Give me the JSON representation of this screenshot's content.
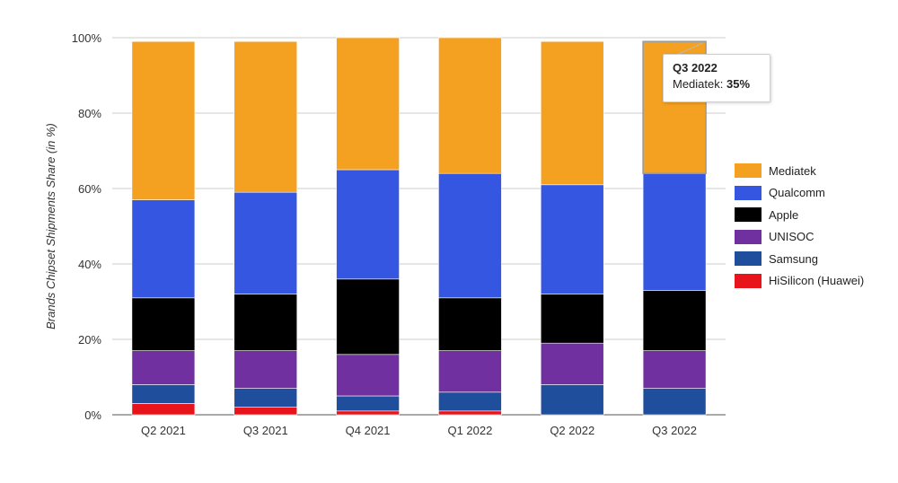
{
  "chart_data": {
    "type": "bar",
    "stacked": true,
    "title": "",
    "xlabel": "",
    "ylabel": "Brands Chipset Shipments Share (in %)",
    "ylim": [
      0,
      100
    ],
    "yticks": [
      "0%",
      "20%",
      "40%",
      "60%",
      "80%",
      "100%"
    ],
    "categories": [
      "Q2 2021",
      "Q3 2021",
      "Q4 2021",
      "Q1 2022",
      "Q2 2022",
      "Q3 2022"
    ],
    "series": [
      {
        "name": "HiSilicon (Huawei)",
        "color": "#e8141c",
        "values": [
          3,
          2,
          1,
          1,
          0,
          0
        ]
      },
      {
        "name": "Samsung",
        "color": "#1f4e9c",
        "values": [
          5,
          5,
          4,
          5,
          8,
          7
        ]
      },
      {
        "name": "UNISOC",
        "color": "#7030a0",
        "values": [
          9,
          10,
          11,
          11,
          11,
          10
        ]
      },
      {
        "name": "Apple",
        "color": "#000000",
        "values": [
          14,
          15,
          20,
          14,
          13,
          16
        ]
      },
      {
        "name": "Qualcomm",
        "color": "#3556e0",
        "values": [
          26,
          27,
          29,
          33,
          29,
          31
        ]
      },
      {
        "name": "Mediatek",
        "color": "#f4a020",
        "values": [
          42,
          40,
          35,
          36,
          38,
          35
        ]
      }
    ],
    "legend_position": "right",
    "grid": true
  },
  "legend": {
    "items": [
      {
        "label": "Mediatek",
        "color": "#f4a020"
      },
      {
        "label": "Qualcomm",
        "color": "#3556e0"
      },
      {
        "label": "Apple",
        "color": "#000000"
      },
      {
        "label": "UNISOC",
        "color": "#7030a0"
      },
      {
        "label": "Samsung",
        "color": "#1f4e9c"
      },
      {
        "label": "HiSilicon (Huawei)",
        "color": "#e8141c"
      }
    ]
  },
  "tooltip": {
    "title": "Q3 2022",
    "label": "Mediatek: ",
    "value": "35%",
    "category": "Q3 2022",
    "series": "Mediatek"
  }
}
